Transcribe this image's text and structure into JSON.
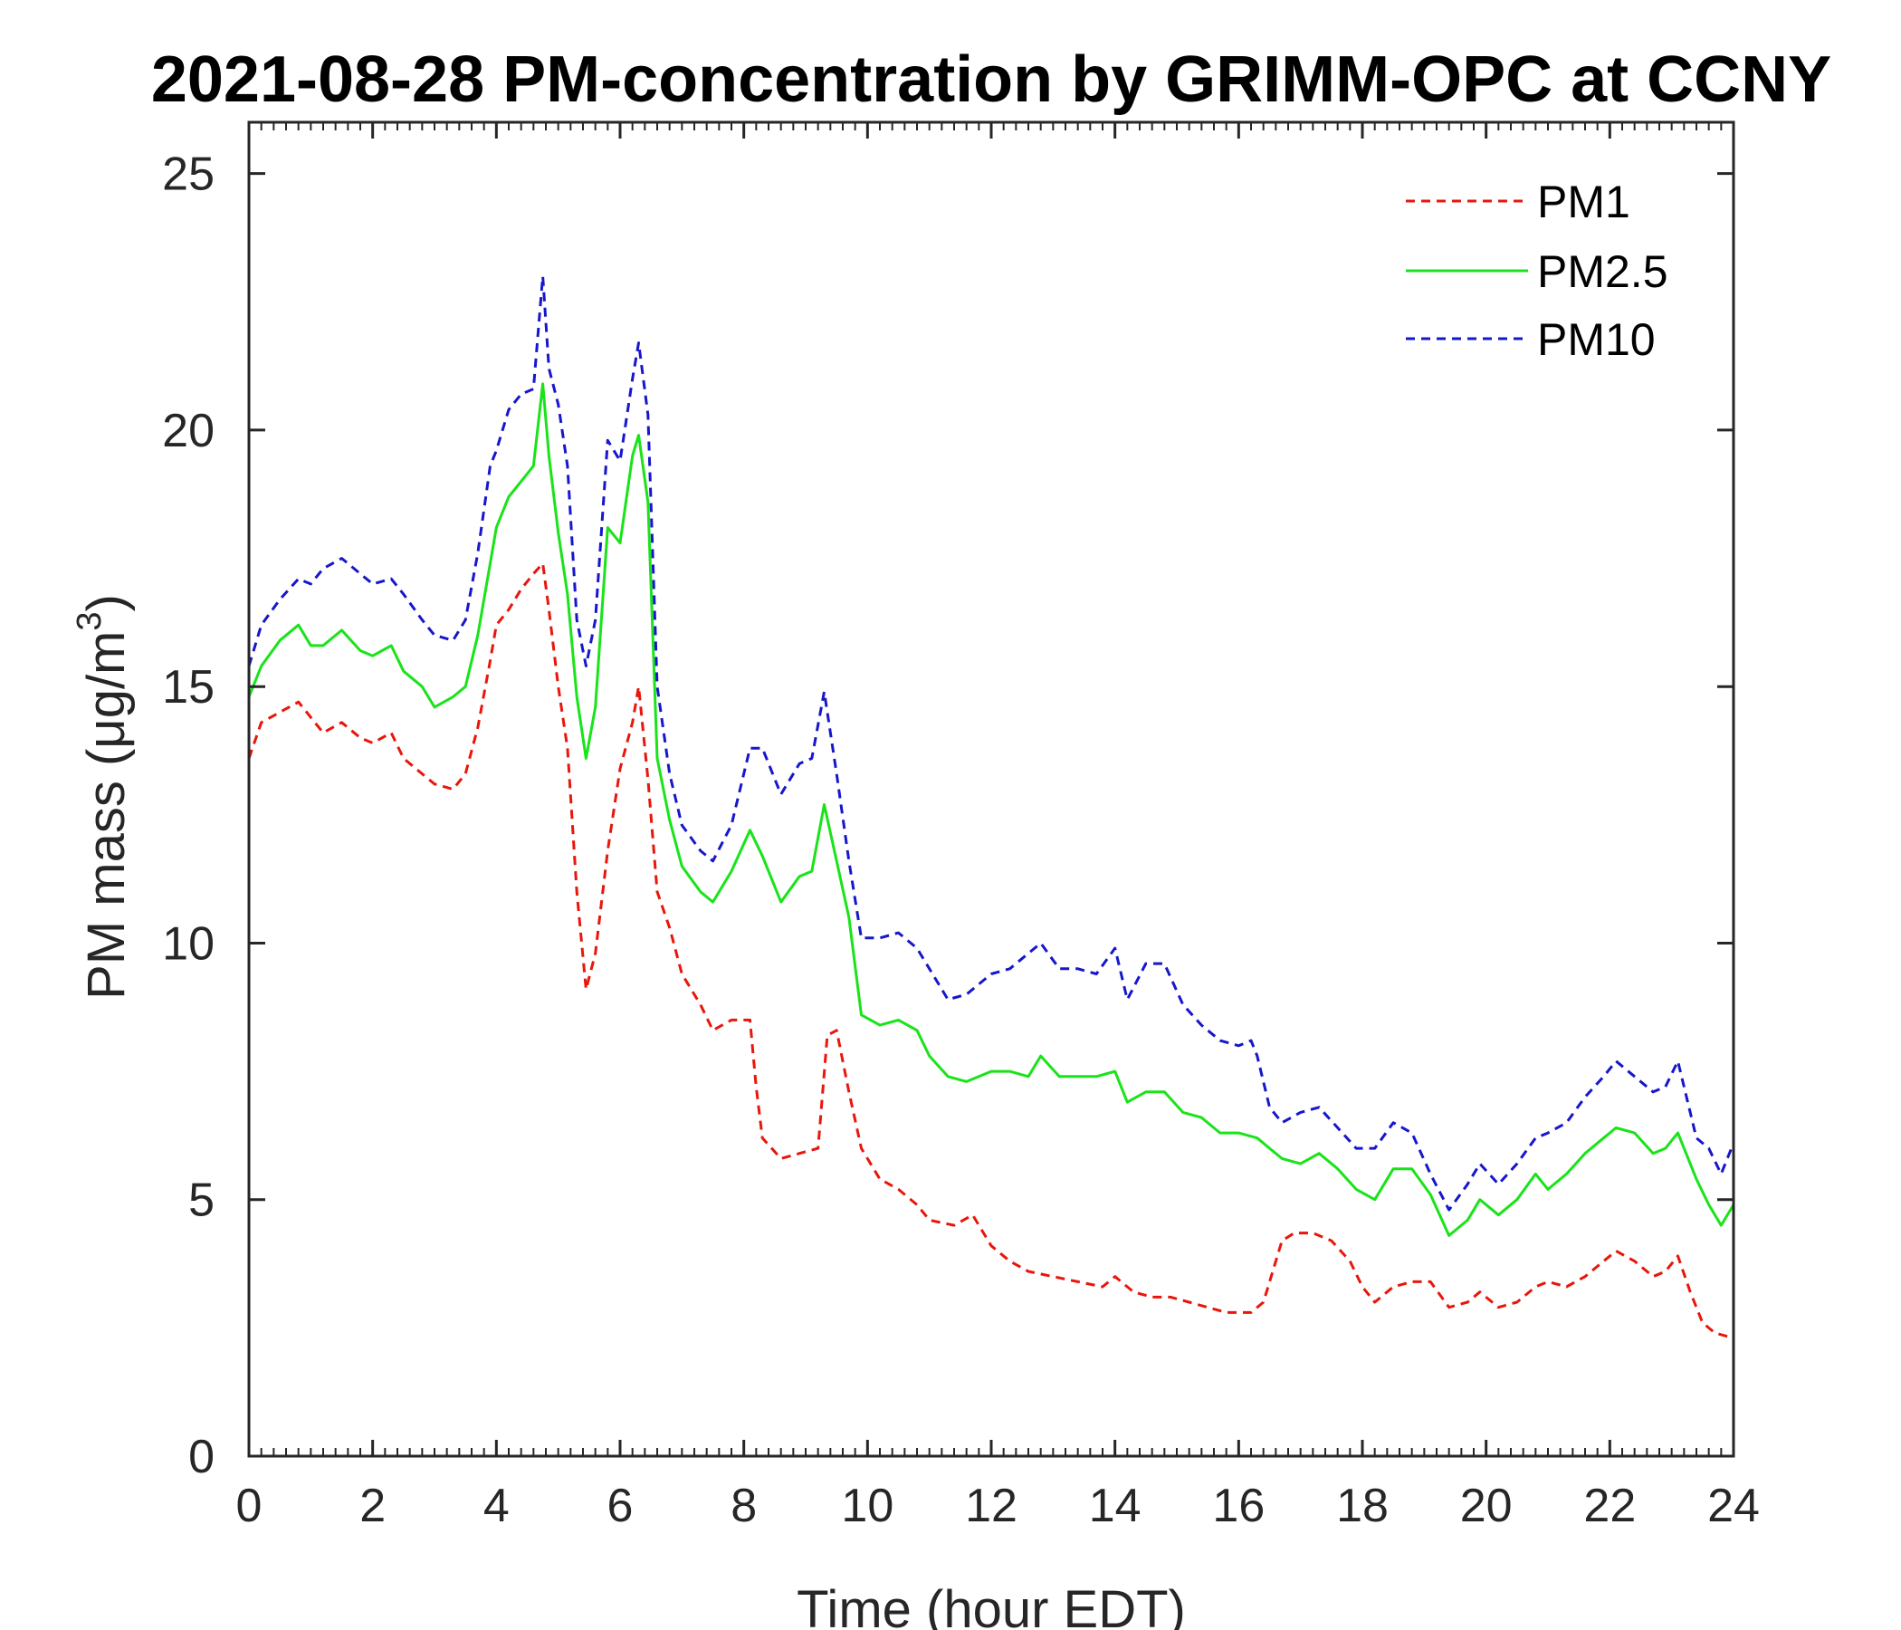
{
  "chart_data": {
    "type": "line",
    "title": "2021-08-28 PM-concentration by GRIMM-OPC at CCNY",
    "xlabel": "Time (hour EDT)",
    "ylabel": "PM mass (μg/m",
    "ylabel_sup": "3",
    "ylabel_close": ")",
    "xlim": [
      0,
      24
    ],
    "ylim": [
      0,
      26
    ],
    "xticks": [
      "0",
      "2",
      "4",
      "6",
      "8",
      "10",
      "12",
      "14",
      "16",
      "18",
      "20",
      "22",
      "24"
    ],
    "yticks": [
      "0",
      "5",
      "10",
      "15",
      "20",
      "25"
    ],
    "legend_position": "top-right",
    "series": [
      {
        "name": "PM1",
        "color": "#e8160b",
        "style": "dashed",
        "points": [
          [
            0,
            13.6
          ],
          [
            0.2,
            14.3
          ],
          [
            0.5,
            14.5
          ],
          [
            0.8,
            14.7
          ],
          [
            1.0,
            14.4
          ],
          [
            1.2,
            14.1
          ],
          [
            1.5,
            14.3
          ],
          [
            1.8,
            14.0
          ],
          [
            2.0,
            13.9
          ],
          [
            2.3,
            14.1
          ],
          [
            2.5,
            13.6
          ],
          [
            2.8,
            13.3
          ],
          [
            3.0,
            13.1
          ],
          [
            3.3,
            13.0
          ],
          [
            3.5,
            13.3
          ],
          [
            3.7,
            14.2
          ],
          [
            3.9,
            15.5
          ],
          [
            4.0,
            16.2
          ],
          [
            4.2,
            16.5
          ],
          [
            4.4,
            16.9
          ],
          [
            4.6,
            17.2
          ],
          [
            4.75,
            17.4
          ],
          [
            4.85,
            16.5
          ],
          [
            5.0,
            15.0
          ],
          [
            5.15,
            13.8
          ],
          [
            5.3,
            11.0
          ],
          [
            5.45,
            9.1
          ],
          [
            5.6,
            9.8
          ],
          [
            5.8,
            11.8
          ],
          [
            6.0,
            13.4
          ],
          [
            6.2,
            14.3
          ],
          [
            6.3,
            15.0
          ],
          [
            6.45,
            13.2
          ],
          [
            6.6,
            11.0
          ],
          [
            6.8,
            10.3
          ],
          [
            7.0,
            9.4
          ],
          [
            7.3,
            8.8
          ],
          [
            7.5,
            8.3
          ],
          [
            7.8,
            8.5
          ],
          [
            8.1,
            8.5
          ],
          [
            8.2,
            7.2
          ],
          [
            8.3,
            6.2
          ],
          [
            8.6,
            5.8
          ],
          [
            8.9,
            5.9
          ],
          [
            9.2,
            6.0
          ],
          [
            9.35,
            8.2
          ],
          [
            9.5,
            8.3
          ],
          [
            9.7,
            7.1
          ],
          [
            9.9,
            6.0
          ],
          [
            10.2,
            5.4
          ],
          [
            10.5,
            5.2
          ],
          [
            10.8,
            4.9
          ],
          [
            11.0,
            4.6
          ],
          [
            11.4,
            4.5
          ],
          [
            11.7,
            4.7
          ],
          [
            12.0,
            4.1
          ],
          [
            12.3,
            3.8
          ],
          [
            12.6,
            3.6
          ],
          [
            13.0,
            3.5
          ],
          [
            13.4,
            3.4
          ],
          [
            13.8,
            3.3
          ],
          [
            14.0,
            3.5
          ],
          [
            14.3,
            3.2
          ],
          [
            14.6,
            3.1
          ],
          [
            14.9,
            3.1
          ],
          [
            15.2,
            3.0
          ],
          [
            15.5,
            2.9
          ],
          [
            15.8,
            2.8
          ],
          [
            16.2,
            2.8
          ],
          [
            16.4,
            3.0
          ],
          [
            16.7,
            4.2
          ],
          [
            16.9,
            4.35
          ],
          [
            17.2,
            4.35
          ],
          [
            17.5,
            4.2
          ],
          [
            17.8,
            3.8
          ],
          [
            18.0,
            3.3
          ],
          [
            18.2,
            3.0
          ],
          [
            18.5,
            3.3
          ],
          [
            18.8,
            3.4
          ],
          [
            19.1,
            3.4
          ],
          [
            19.4,
            2.9
          ],
          [
            19.7,
            3.0
          ],
          [
            19.9,
            3.2
          ],
          [
            20.2,
            2.9
          ],
          [
            20.5,
            3.0
          ],
          [
            20.8,
            3.3
          ],
          [
            21.0,
            3.4
          ],
          [
            21.3,
            3.3
          ],
          [
            21.6,
            3.5
          ],
          [
            21.9,
            3.8
          ],
          [
            22.1,
            4.0
          ],
          [
            22.4,
            3.8
          ],
          [
            22.7,
            3.5
          ],
          [
            22.9,
            3.6
          ],
          [
            23.1,
            3.9
          ],
          [
            23.3,
            3.2
          ],
          [
            23.5,
            2.6
          ],
          [
            23.7,
            2.4
          ],
          [
            24.0,
            2.3
          ]
        ]
      },
      {
        "name": "PM2.5",
        "color": "#19e319",
        "style": "solid",
        "points": [
          [
            0,
            14.8
          ],
          [
            0.2,
            15.4
          ],
          [
            0.5,
            15.9
          ],
          [
            0.8,
            16.2
          ],
          [
            1.0,
            15.8
          ],
          [
            1.2,
            15.8
          ],
          [
            1.5,
            16.1
          ],
          [
            1.8,
            15.7
          ],
          [
            2.0,
            15.6
          ],
          [
            2.3,
            15.8
          ],
          [
            2.5,
            15.3
          ],
          [
            2.8,
            15.0
          ],
          [
            3.0,
            14.6
          ],
          [
            3.3,
            14.8
          ],
          [
            3.5,
            15.0
          ],
          [
            3.7,
            16.0
          ],
          [
            3.9,
            17.4
          ],
          [
            4.0,
            18.1
          ],
          [
            4.2,
            18.7
          ],
          [
            4.4,
            19.0
          ],
          [
            4.6,
            19.3
          ],
          [
            4.75,
            20.9
          ],
          [
            4.85,
            19.5
          ],
          [
            5.0,
            18.0
          ],
          [
            5.15,
            16.8
          ],
          [
            5.3,
            14.8
          ],
          [
            5.45,
            13.6
          ],
          [
            5.6,
            14.6
          ],
          [
            5.8,
            18.1
          ],
          [
            6.0,
            17.8
          ],
          [
            6.2,
            19.5
          ],
          [
            6.3,
            19.9
          ],
          [
            6.45,
            18.6
          ],
          [
            6.6,
            13.6
          ],
          [
            6.8,
            12.4
          ],
          [
            7.0,
            11.5
          ],
          [
            7.3,
            11.0
          ],
          [
            7.5,
            10.8
          ],
          [
            7.8,
            11.4
          ],
          [
            8.1,
            12.2
          ],
          [
            8.3,
            11.7
          ],
          [
            8.6,
            10.8
          ],
          [
            8.9,
            11.3
          ],
          [
            9.1,
            11.4
          ],
          [
            9.3,
            12.7
          ],
          [
            9.5,
            11.6
          ],
          [
            9.7,
            10.5
          ],
          [
            9.9,
            8.6
          ],
          [
            10.2,
            8.4
          ],
          [
            10.5,
            8.5
          ],
          [
            10.8,
            8.3
          ],
          [
            11.0,
            7.8
          ],
          [
            11.3,
            7.4
          ],
          [
            11.6,
            7.3
          ],
          [
            12.0,
            7.5
          ],
          [
            12.3,
            7.5
          ],
          [
            12.6,
            7.4
          ],
          [
            12.8,
            7.8
          ],
          [
            13.1,
            7.4
          ],
          [
            13.4,
            7.4
          ],
          [
            13.7,
            7.4
          ],
          [
            14.0,
            7.5
          ],
          [
            14.2,
            6.9
          ],
          [
            14.5,
            7.1
          ],
          [
            14.8,
            7.1
          ],
          [
            15.1,
            6.7
          ],
          [
            15.4,
            6.6
          ],
          [
            15.7,
            6.3
          ],
          [
            16.0,
            6.3
          ],
          [
            16.3,
            6.2
          ],
          [
            16.5,
            6.0
          ],
          [
            16.7,
            5.8
          ],
          [
            17.0,
            5.7
          ],
          [
            17.3,
            5.9
          ],
          [
            17.6,
            5.6
          ],
          [
            17.9,
            5.2
          ],
          [
            18.2,
            5.0
          ],
          [
            18.5,
            5.6
          ],
          [
            18.8,
            5.6
          ],
          [
            19.1,
            5.1
          ],
          [
            19.4,
            4.3
          ],
          [
            19.7,
            4.6
          ],
          [
            19.9,
            5.0
          ],
          [
            20.2,
            4.7
          ],
          [
            20.5,
            5.0
          ],
          [
            20.8,
            5.5
          ],
          [
            21.0,
            5.2
          ],
          [
            21.3,
            5.5
          ],
          [
            21.6,
            5.9
          ],
          [
            21.9,
            6.2
          ],
          [
            22.1,
            6.4
          ],
          [
            22.4,
            6.3
          ],
          [
            22.7,
            5.9
          ],
          [
            22.9,
            6.0
          ],
          [
            23.1,
            6.3
          ],
          [
            23.4,
            5.4
          ],
          [
            23.6,
            4.9
          ],
          [
            23.8,
            4.5
          ],
          [
            24.0,
            4.9
          ]
        ]
      },
      {
        "name": "PM10",
        "color": "#1616cc",
        "style": "dashed",
        "points": [
          [
            0,
            15.4
          ],
          [
            0.2,
            16.2
          ],
          [
            0.5,
            16.7
          ],
          [
            0.8,
            17.1
          ],
          [
            1.0,
            17.0
          ],
          [
            1.2,
            17.3
          ],
          [
            1.5,
            17.5
          ],
          [
            1.8,
            17.2
          ],
          [
            2.0,
            17.0
          ],
          [
            2.3,
            17.1
          ],
          [
            2.5,
            16.8
          ],
          [
            2.8,
            16.3
          ],
          [
            3.0,
            16.0
          ],
          [
            3.3,
            15.9
          ],
          [
            3.5,
            16.3
          ],
          [
            3.7,
            17.6
          ],
          [
            3.9,
            19.3
          ],
          [
            4.0,
            19.6
          ],
          [
            4.2,
            20.4
          ],
          [
            4.4,
            20.7
          ],
          [
            4.6,
            20.8
          ],
          [
            4.75,
            23.0
          ],
          [
            4.85,
            21.2
          ],
          [
            5.0,
            20.5
          ],
          [
            5.15,
            19.3
          ],
          [
            5.3,
            16.3
          ],
          [
            5.45,
            15.4
          ],
          [
            5.6,
            16.3
          ],
          [
            5.8,
            19.8
          ],
          [
            6.0,
            19.4
          ],
          [
            6.2,
            21.0
          ],
          [
            6.3,
            21.7
          ],
          [
            6.45,
            20.3
          ],
          [
            6.6,
            15.0
          ],
          [
            6.8,
            13.3
          ],
          [
            7.0,
            12.3
          ],
          [
            7.3,
            11.8
          ],
          [
            7.5,
            11.6
          ],
          [
            7.8,
            12.3
          ],
          [
            8.1,
            13.8
          ],
          [
            8.3,
            13.8
          ],
          [
            8.6,
            12.9
          ],
          [
            8.9,
            13.5
          ],
          [
            9.1,
            13.6
          ],
          [
            9.3,
            14.9
          ],
          [
            9.5,
            13.3
          ],
          [
            9.7,
            11.6
          ],
          [
            9.9,
            10.1
          ],
          [
            10.2,
            10.1
          ],
          [
            10.5,
            10.2
          ],
          [
            10.8,
            9.9
          ],
          [
            11.0,
            9.5
          ],
          [
            11.3,
            8.9
          ],
          [
            11.6,
            9.0
          ],
          [
            12.0,
            9.4
          ],
          [
            12.3,
            9.5
          ],
          [
            12.6,
            9.8
          ],
          [
            12.8,
            10.0
          ],
          [
            13.1,
            9.5
          ],
          [
            13.4,
            9.5
          ],
          [
            13.7,
            9.4
          ],
          [
            14.0,
            9.9
          ],
          [
            14.2,
            8.9
          ],
          [
            14.5,
            9.6
          ],
          [
            14.8,
            9.6
          ],
          [
            15.1,
            8.8
          ],
          [
            15.4,
            8.4
          ],
          [
            15.7,
            8.1
          ],
          [
            16.0,
            8.0
          ],
          [
            16.2,
            8.1
          ],
          [
            16.3,
            7.8
          ],
          [
            16.5,
            6.8
          ],
          [
            16.7,
            6.5
          ],
          [
            17.0,
            6.7
          ],
          [
            17.3,
            6.8
          ],
          [
            17.6,
            6.4
          ],
          [
            17.9,
            6.0
          ],
          [
            18.2,
            6.0
          ],
          [
            18.5,
            6.5
          ],
          [
            18.8,
            6.3
          ],
          [
            19.1,
            5.5
          ],
          [
            19.4,
            4.8
          ],
          [
            19.7,
            5.3
          ],
          [
            19.9,
            5.7
          ],
          [
            20.2,
            5.3
          ],
          [
            20.5,
            5.7
          ],
          [
            20.8,
            6.2
          ],
          [
            21.0,
            6.3
          ],
          [
            21.3,
            6.5
          ],
          [
            21.6,
            7.0
          ],
          [
            21.9,
            7.4
          ],
          [
            22.1,
            7.7
          ],
          [
            22.4,
            7.4
          ],
          [
            22.7,
            7.1
          ],
          [
            22.9,
            7.2
          ],
          [
            23.1,
            7.7
          ],
          [
            23.4,
            6.2
          ],
          [
            23.6,
            6.0
          ],
          [
            23.8,
            5.5
          ],
          [
            24.0,
            6.1
          ]
        ]
      }
    ]
  }
}
